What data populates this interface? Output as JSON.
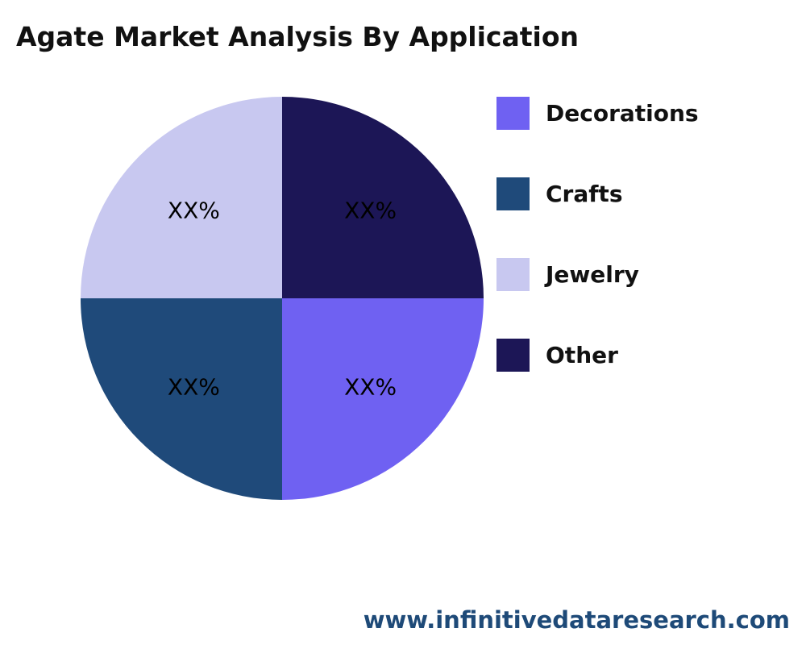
{
  "title": "Agate Market Analysis By Application",
  "footer": "www.infinitivedataresearch.com",
  "chart_data": {
    "type": "pie",
    "title": "Agate Market Analysis By Application",
    "slices": [
      {
        "name": "Decorations",
        "value": 25,
        "label": "XX%",
        "color": "#6f61f2"
      },
      {
        "name": "Crafts",
        "value": 25,
        "label": "XX%",
        "color": "#1f4a7a"
      },
      {
        "name": "Jewelry",
        "value": 25,
        "label": "XX%",
        "color": "#c8c8f0"
      },
      {
        "name": "Other",
        "value": 25,
        "label": "XX%",
        "color": "#1c1656"
      }
    ],
    "legend_position": "right"
  }
}
